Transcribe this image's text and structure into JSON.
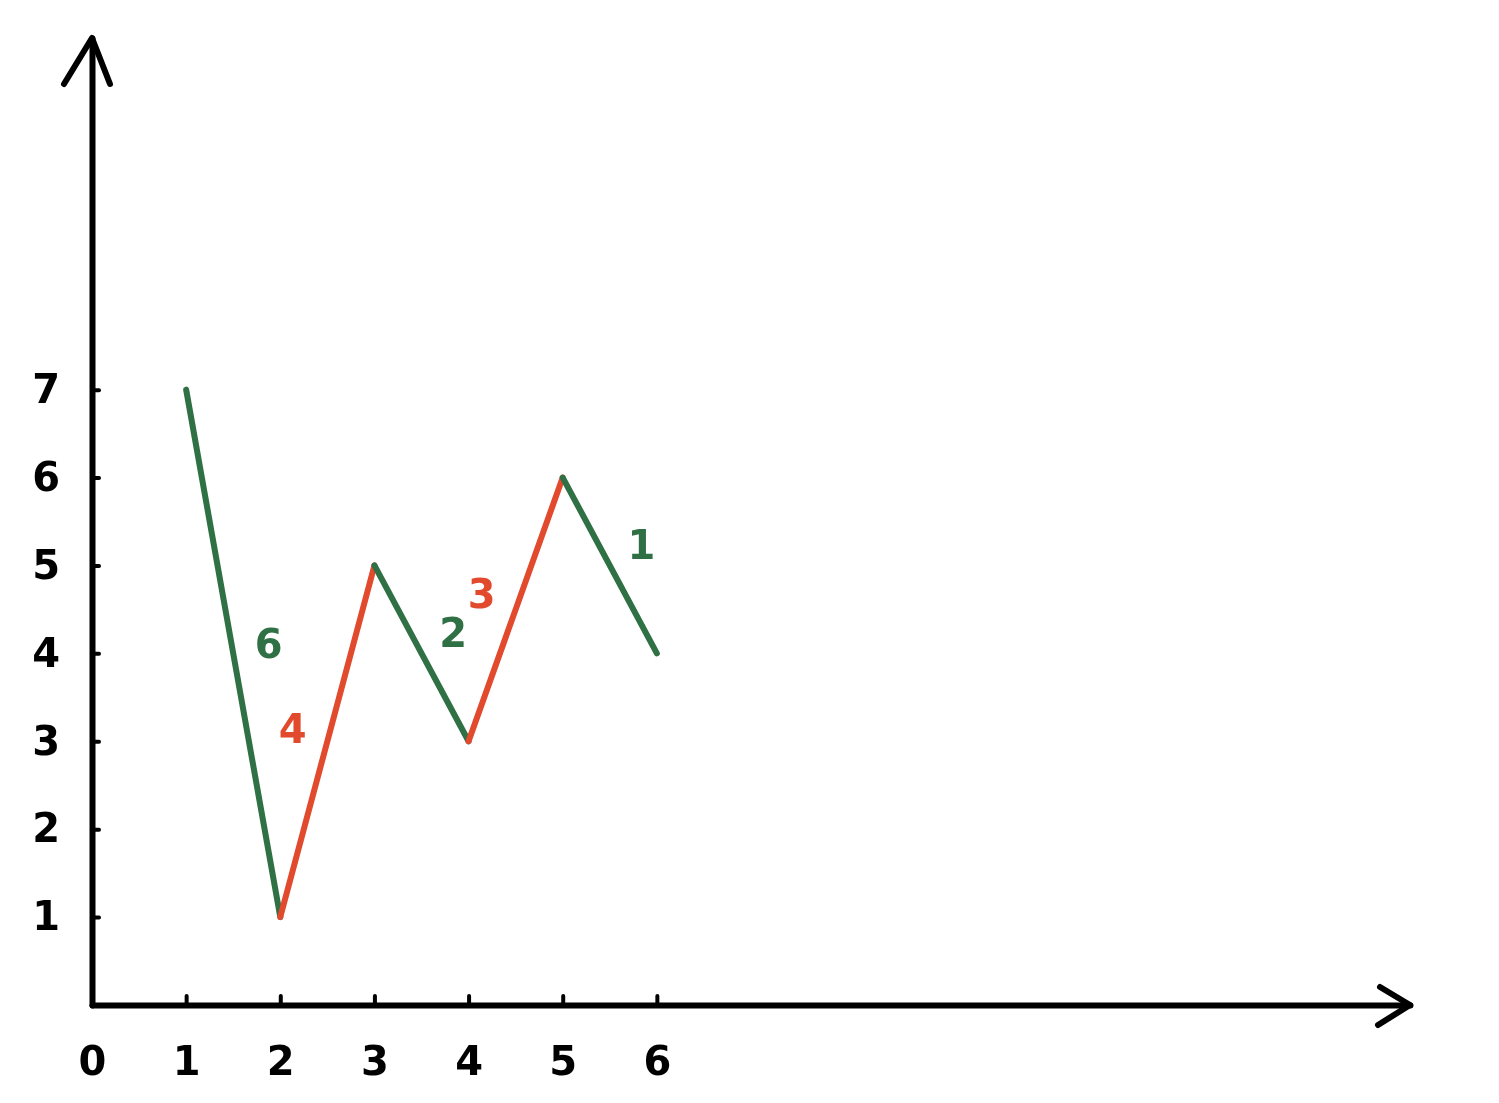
{
  "chart_data": {
    "type": "line",
    "series": [
      {
        "color": "#2f7044",
        "x": [
          1,
          2
        ],
        "values": [
          7,
          1
        ]
      },
      {
        "color": "#e24a2e",
        "x": [
          2,
          3
        ],
        "values": [
          1,
          5
        ]
      },
      {
        "color": "#2f7044",
        "x": [
          3,
          4
        ],
        "values": [
          5,
          3
        ]
      },
      {
        "color": "#e24a2e",
        "x": [
          4,
          5
        ],
        "values": [
          3,
          6
        ]
      },
      {
        "color": "#2f7044",
        "x": [
          5,
          6
        ],
        "values": [
          6,
          4
        ]
      }
    ],
    "xlim": [
      0,
      14
    ],
    "ylim": [
      0,
      11
    ],
    "xticks": [
      0,
      1,
      2,
      3,
      4,
      5,
      6
    ],
    "yticks": [
      1,
      2,
      3,
      4,
      5,
      6,
      7
    ],
    "annotations": [
      "6",
      "4",
      "2",
      "3",
      "1"
    ]
  }
}
